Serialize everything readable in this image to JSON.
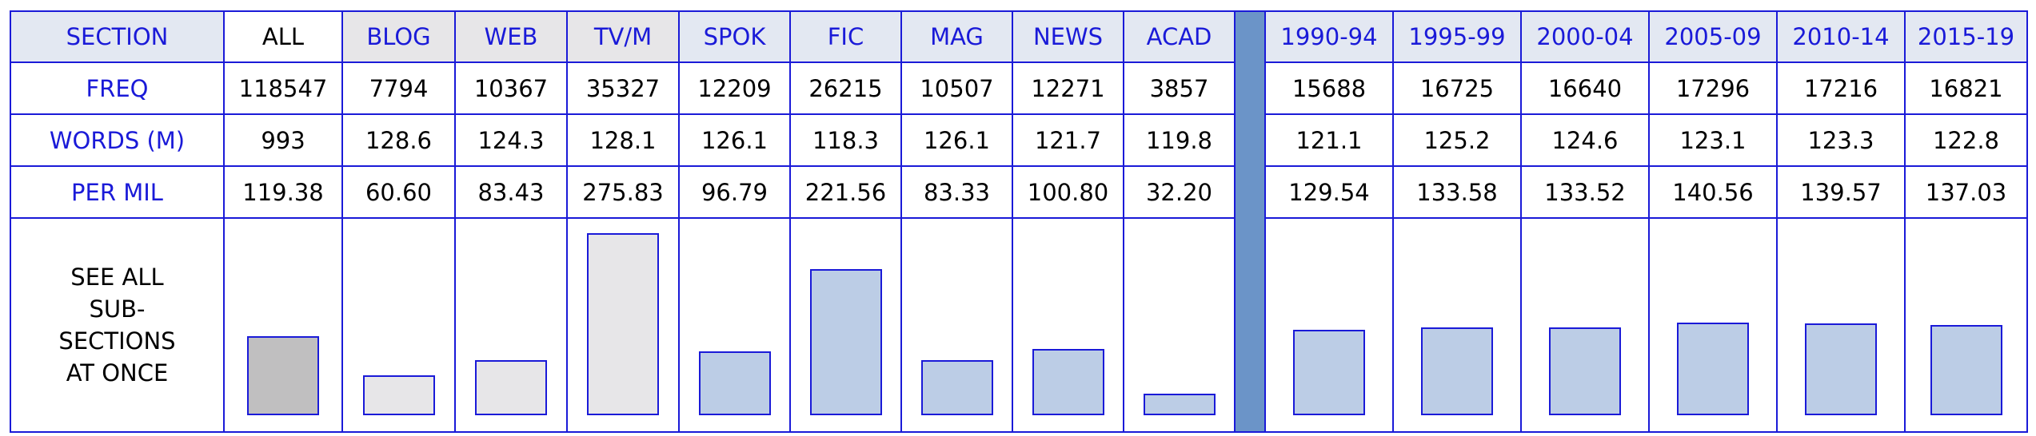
{
  "header": {
    "section_label": "SECTION",
    "columns": [
      "ALL",
      "BLOG",
      "WEB",
      "TV/M",
      "SPOK",
      "FIC",
      "MAG",
      "NEWS",
      "ACAD",
      "1990-94",
      "1995-99",
      "2000-04",
      "2005-09",
      "2010-14",
      "2015-19"
    ]
  },
  "rows": {
    "freq": {
      "label": "FREQ",
      "values": [
        "118547",
        "7794",
        "10367",
        "35327",
        "12209",
        "26215",
        "10507",
        "12271",
        "3857",
        "15688",
        "16725",
        "16640",
        "17296",
        "17216",
        "16821"
      ]
    },
    "words": {
      "label": "WORDS (M)",
      "values": [
        "993",
        "128.6",
        "124.3",
        "128.1",
        "126.1",
        "118.3",
        "126.1",
        "121.7",
        "119.8",
        "121.1",
        "125.2",
        "124.6",
        "123.1",
        "123.3",
        "122.8"
      ]
    },
    "permil": {
      "label": "PER MIL",
      "values": [
        "119.38",
        "60.60",
        "83.43",
        "275.83",
        "96.79",
        "221.56",
        "83.33",
        "100.80",
        "32.20",
        "129.54",
        "133.58",
        "133.52",
        "140.56",
        "139.57",
        "137.03"
      ]
    }
  },
  "see_all": "SEE ALL SUB-SECTIONS AT ONCE",
  "colors": {
    "border": "#1a1ad8",
    "header_bg": "#e3e8f2",
    "gray_header_bg": "#e7e6e8",
    "divider": "#6b94c8",
    "bar_all": "#c0bfc0",
    "bar_gray": "#e7e6e8",
    "bar_blue": "#bccde6"
  },
  "chart_data": {
    "type": "bar",
    "categories": [
      "ALL",
      "BLOG",
      "WEB",
      "TV/M",
      "SPOK",
      "FIC",
      "MAG",
      "NEWS",
      "ACAD",
      "1990-94",
      "1995-99",
      "2000-04",
      "2005-09",
      "2010-14",
      "2015-19"
    ],
    "values": [
      119.38,
      60.6,
      83.43,
      275.83,
      96.79,
      221.56,
      83.33,
      100.8,
      32.2,
      129.54,
      133.58,
      133.52,
      140.56,
      139.57,
      137.03
    ],
    "ylabel": "PER MIL"
  }
}
